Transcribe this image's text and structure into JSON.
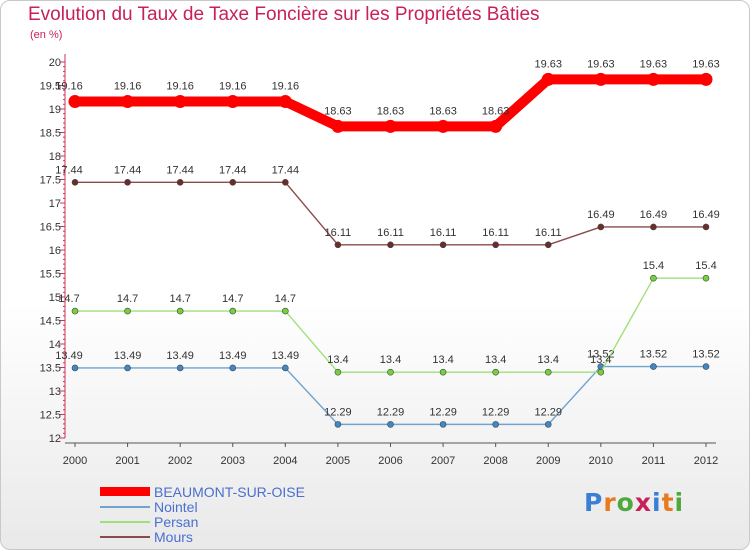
{
  "title": "Evolution du Taux de Taxe Foncière sur les Propriétés Bâties",
  "subtitle": "(en %)",
  "logo": {
    "text": "Proxiti",
    "colors": [
      "#3a7fd5",
      "#e87b1e",
      "#4fa83d",
      "#c8205a",
      "#3a7fd5",
      "#e87b1e",
      "#4fa83d"
    ]
  },
  "chart_data": {
    "type": "line",
    "title": "Evolution du Taux de Taxe Foncière sur les Propriétés Bâties",
    "ylabel": "(en %)",
    "xlabel": "",
    "ylim": [
      12,
      20
    ],
    "yticks": [
      "12",
      "12.5",
      "13",
      "13.5",
      "14",
      "14.5",
      "15",
      "15.5",
      "16",
      "16.5",
      "17",
      "17.5",
      "18",
      "18.5",
      "19",
      "19.5",
      "20"
    ],
    "categories": [
      "2000",
      "2001",
      "2002",
      "2003",
      "2004",
      "2005",
      "2006",
      "2007",
      "2008",
      "2009",
      "2010",
      "2011",
      "2012"
    ],
    "series": [
      {
        "name": "BEAUMONT-SUR-OISE",
        "color": "#ff0000",
        "emphasis": true,
        "values": [
          19.16,
          19.16,
          19.16,
          19.16,
          19.16,
          18.63,
          18.63,
          18.63,
          18.63,
          19.63,
          19.63,
          19.63,
          19.63
        ],
        "labels": [
          "19.16",
          "19.16",
          "19.16",
          "19.16",
          "19.16",
          "18.63",
          "18.63",
          "18.63",
          "18.63",
          "19.63",
          "19.63",
          "19.63",
          "19.63"
        ]
      },
      {
        "name": "Nointel",
        "color": "#6fa3d0",
        "point_color": "#3f88c5",
        "values": [
          13.49,
          13.49,
          13.49,
          13.49,
          13.49,
          12.29,
          12.29,
          12.29,
          12.29,
          12.29,
          13.52,
          13.52,
          13.52
        ],
        "labels": [
          "13.49",
          "13.49",
          "13.49",
          "13.49",
          "13.49",
          "12.29",
          "12.29",
          "12.29",
          "12.29",
          "12.29",
          "13.52",
          "13.52",
          "13.52"
        ]
      },
      {
        "name": "Persan",
        "color": "#9fe07a",
        "point_color": "#76d03c",
        "values": [
          14.7,
          14.7,
          14.7,
          14.7,
          14.7,
          13.4,
          13.4,
          13.4,
          13.4,
          13.4,
          13.4,
          15.4,
          15.4
        ],
        "labels": [
          "14.7",
          "14.7",
          "14.7",
          "14.7",
          "14.7",
          "13.4",
          "13.4",
          "13.4",
          "13.4",
          "13.4",
          "13.4",
          "15.4",
          "15.4"
        ]
      },
      {
        "name": "Mours",
        "color": "#8a4b4b",
        "point_color": "#6b2c2c",
        "values": [
          17.44,
          17.44,
          17.44,
          17.44,
          17.44,
          16.11,
          16.11,
          16.11,
          16.11,
          16.11,
          16.49,
          16.49,
          16.49
        ],
        "labels": [
          "17.44",
          "17.44",
          "17.44",
          "17.44",
          "17.44",
          "16.11",
          "16.11",
          "16.11",
          "16.11",
          "16.11",
          "16.49",
          "16.49",
          "16.49"
        ]
      }
    ],
    "legend": [
      "BEAUMONT-SUR-OISE",
      "Nointel",
      "Persan",
      "Mours"
    ],
    "legend_position": "bottom-left",
    "grid": false
  }
}
